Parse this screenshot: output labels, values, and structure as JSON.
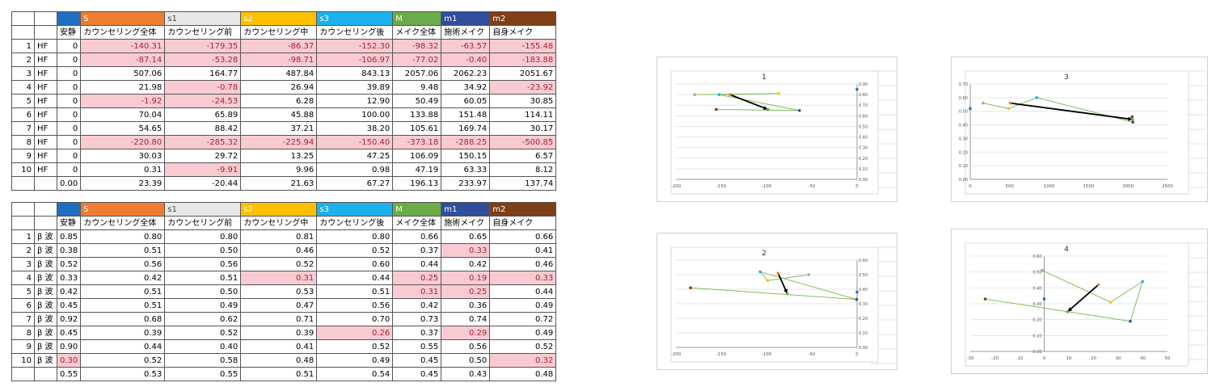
{
  "header_colors": [
    "#1f6fc0",
    "#ee7d31",
    "#e8e8e8",
    "#fec000",
    "#1cb1ee",
    "#6aac47",
    "#2f4e9c",
    "#7f3f17"
  ],
  "header_letters": [
    "",
    "S",
    "s1",
    "s2",
    "s3",
    "M",
    "m1",
    "m2"
  ],
  "col_labels": [
    "安静",
    "カウンセリング全体",
    "カウンセリング前",
    "カウンセリング中",
    "カウンセリング後",
    "メイク全体",
    "施術メイク",
    "自身メイク"
  ],
  "table1": {
    "row_label": "HF",
    "rows": [
      [
        "0",
        "-140.31",
        "-179.35",
        "-86.37",
        "-152.30",
        "-98.32",
        "-63.57",
        "-155.48"
      ],
      [
        "0",
        "-87.14",
        "-53.28",
        "-98.71",
        "-106.97",
        "-77.02",
        "-0.40",
        "-183.88"
      ],
      [
        "0",
        "507.06",
        "164.77",
        "487.84",
        "843.13",
        "2057.06",
        "2062.23",
        "2051.67"
      ],
      [
        "0",
        "21.98",
        "-0.78",
        "26.94",
        "39.89",
        "9.48",
        "34.92",
        "-23.92"
      ],
      [
        "0",
        "-1.92",
        "-24.53",
        "6.28",
        "12.90",
        "50.49",
        "60.05",
        "30.85"
      ],
      [
        "0",
        "70.04",
        "65.89",
        "45.88",
        "100.00",
        "133.88",
        "151.48",
        "114.11"
      ],
      [
        "0",
        "54.65",
        "88.42",
        "37.21",
        "38.20",
        "105.61",
        "169.74",
        "30.17"
      ],
      [
        "0",
        "-220.80",
        "-285.32",
        "-225.94",
        "-150.40",
        "-373.18",
        "-288.25",
        "-500.85"
      ],
      [
        "0",
        "30.03",
        "29.72",
        "13.25",
        "47.25",
        "106.09",
        "150.15",
        "6.57"
      ],
      [
        "0",
        "0.31",
        "-9.91",
        "9.96",
        "0.98",
        "47.19",
        "63.33",
        "8.12"
      ]
    ],
    "highlights": [
      [
        0,
        1
      ],
      [
        0,
        2
      ],
      [
        0,
        3
      ],
      [
        0,
        4
      ],
      [
        0,
        5
      ],
      [
        0,
        6
      ],
      [
        0,
        7
      ],
      [
        1,
        1
      ],
      [
        1,
        2
      ],
      [
        1,
        3
      ],
      [
        1,
        4
      ],
      [
        1,
        5
      ],
      [
        1,
        6
      ],
      [
        1,
        7
      ],
      [
        3,
        2
      ],
      [
        3,
        7
      ],
      [
        4,
        1
      ],
      [
        4,
        2
      ],
      [
        7,
        1
      ],
      [
        7,
        2
      ],
      [
        7,
        3
      ],
      [
        7,
        4
      ],
      [
        7,
        5
      ],
      [
        7,
        6
      ],
      [
        7,
        7
      ],
      [
        9,
        2
      ]
    ],
    "summary": [
      "0.00",
      "23.39",
      "-20.44",
      "21.63",
      "67.27",
      "196.13",
      "233.97",
      "137.74"
    ]
  },
  "table2": {
    "row_label": "β 波",
    "rows": [
      [
        "0.85",
        "0.80",
        "0.80",
        "0.81",
        "0.80",
        "0.66",
        "0.65",
        "0.66"
      ],
      [
        "0.38",
        "0.51",
        "0.50",
        "0.46",
        "0.52",
        "0.37",
        "0.33",
        "0.41"
      ],
      [
        "0.52",
        "0.56",
        "0.56",
        "0.52",
        "0.60",
        "0.44",
        "0.42",
        "0.46"
      ],
      [
        "0.33",
        "0.42",
        "0.51",
        "0.31",
        "0.44",
        "0.25",
        "0.19",
        "0.33"
      ],
      [
        "0.42",
        "0.51",
        "0.50",
        "0.53",
        "0.51",
        "0.31",
        "0.25",
        "0.44"
      ],
      [
        "0.45",
        "0.51",
        "0.49",
        "0.47",
        "0.56",
        "0.42",
        "0.36",
        "0.49"
      ],
      [
        "0.92",
        "0.68",
        "0.62",
        "0.71",
        "0.70",
        "0.73",
        "0.74",
        "0.72"
      ],
      [
        "0.45",
        "0.39",
        "0.52",
        "0.39",
        "0.26",
        "0.37",
        "0.29",
        "0.49"
      ],
      [
        "0.90",
        "0.44",
        "0.40",
        "0.41",
        "0.52",
        "0.55",
        "0.56",
        "0.52"
      ],
      [
        "0.30",
        "0.52",
        "0.58",
        "0.48",
        "0.49",
        "0.45",
        "0.50",
        "0.32"
      ]
    ],
    "highlights": [
      [
        1,
        6
      ],
      [
        3,
        3
      ],
      [
        3,
        5
      ],
      [
        3,
        6
      ],
      [
        3,
        7
      ],
      [
        4,
        5
      ],
      [
        4,
        6
      ],
      [
        7,
        4
      ],
      [
        7,
        6
      ],
      [
        9,
        0
      ],
      [
        9,
        7
      ]
    ],
    "summary": [
      "0.55",
      "0.53",
      "0.55",
      "0.51",
      "0.54",
      "0.45",
      "0.43",
      "0.48"
    ]
  },
  "chart_data": [
    {
      "type": "scatter",
      "title": "1",
      "xlim": [
        -200,
        0
      ],
      "ylim": [
        0,
        0.9
      ],
      "xticks": [
        "-200",
        "-150",
        "-100",
        "-50",
        "0"
      ],
      "yticks": [
        "0.00",
        "0.10",
        "0.20",
        "0.30",
        "0.40",
        "0.50",
        "0.60",
        "0.70",
        "0.80",
        "0.90"
      ],
      "points": [
        {
          "x": 0,
          "y": 0.85,
          "color": "#1f6fc0"
        },
        {
          "x": -140.31,
          "y": 0.8,
          "color": "#ee7d31"
        },
        {
          "x": -179.35,
          "y": 0.8,
          "color": "#a6a6a6"
        },
        {
          "x": -86.37,
          "y": 0.81,
          "color": "#fec000"
        },
        {
          "x": -152.3,
          "y": 0.8,
          "color": "#1cb1ee"
        },
        {
          "x": -98.32,
          "y": 0.66,
          "color": "#6aac47"
        },
        {
          "x": -63.57,
          "y": 0.65,
          "color": "#2f4e9c"
        },
        {
          "x": -155.48,
          "y": 0.66,
          "color": "#7f3f17"
        }
      ],
      "path": [
        [
          -179.35,
          0.8
        ],
        [
          -86.37,
          0.81
        ],
        [
          -152.3,
          0.8
        ],
        [
          -63.57,
          0.65
        ],
        [
          -155.48,
          0.66
        ]
      ],
      "arrow": [
        [
          -140.31,
          0.8
        ],
        [
          -98.32,
          0.66
        ]
      ]
    },
    {
      "type": "scatter",
      "title": "3",
      "xlim": [
        0,
        2500
      ],
      "ylim": [
        0,
        0.7
      ],
      "xticks": [
        "0",
        "500",
        "1000",
        "1500",
        "2000",
        "2500"
      ],
      "yticks": [
        "0.00",
        "0.10",
        "0.20",
        "0.30",
        "0.40",
        "0.50",
        "0.60",
        "0.70"
      ],
      "points": [
        {
          "x": 0,
          "y": 0.52,
          "color": "#1f6fc0"
        },
        {
          "x": 507.06,
          "y": 0.56,
          "color": "#ee7d31"
        },
        {
          "x": 164.77,
          "y": 0.56,
          "color": "#a6a6a6"
        },
        {
          "x": 487.84,
          "y": 0.52,
          "color": "#fec000"
        },
        {
          "x": 843.13,
          "y": 0.6,
          "color": "#1cb1ee"
        },
        {
          "x": 2057.06,
          "y": 0.44,
          "color": "#6aac47"
        },
        {
          "x": 2062.23,
          "y": 0.42,
          "color": "#2f4e9c"
        },
        {
          "x": 2051.67,
          "y": 0.46,
          "color": "#7f3f17"
        }
      ],
      "path": [
        [
          164.77,
          0.56
        ],
        [
          487.84,
          0.52
        ],
        [
          843.13,
          0.6
        ],
        [
          2062.23,
          0.42
        ],
        [
          2051.67,
          0.46
        ]
      ],
      "arrow": [
        [
          507.06,
          0.56
        ],
        [
          2057.06,
          0.44
        ]
      ]
    },
    {
      "type": "scatter",
      "title": "2",
      "xlim": [
        -200,
        0
      ],
      "ylim": [
        0,
        0.6
      ],
      "xticks": [
        "-200",
        "-150",
        "-100",
        "-50",
        "0"
      ],
      "yticks": [
        "0.00",
        "0.10",
        "0.20",
        "0.30",
        "0.40",
        "0.50",
        "0.60"
      ],
      "points": [
        {
          "x": 0,
          "y": 0.38,
          "color": "#1f6fc0"
        },
        {
          "x": -87.14,
          "y": 0.51,
          "color": "#ee7d31"
        },
        {
          "x": -53.28,
          "y": 0.5,
          "color": "#a6a6a6"
        },
        {
          "x": -98.71,
          "y": 0.46,
          "color": "#fec000"
        },
        {
          "x": -106.97,
          "y": 0.52,
          "color": "#1cb1ee"
        },
        {
          "x": -77.02,
          "y": 0.37,
          "color": "#6aac47"
        },
        {
          "x": -0.4,
          "y": 0.33,
          "color": "#2f4e9c"
        },
        {
          "x": -183.88,
          "y": 0.41,
          "color": "#7f3f17"
        }
      ],
      "path": [
        [
          -53.28,
          0.5
        ],
        [
          -98.71,
          0.46
        ],
        [
          -106.97,
          0.52
        ],
        [
          -0.4,
          0.33
        ],
        [
          -183.88,
          0.41
        ]
      ],
      "arrow": [
        [
          -87.14,
          0.51
        ],
        [
          -77.02,
          0.37
        ]
      ]
    },
    {
      "type": "scatter",
      "title": "4",
      "xlim": [
        -30,
        50
      ],
      "ylim": [
        0,
        0.6
      ],
      "xticks": [
        "-30",
        "-20",
        "-10",
        "0",
        "10",
        "20",
        "30",
        "40",
        "50"
      ],
      "yticks": [
        "0.00",
        "0.10",
        "0.20",
        "0.30",
        "0.40",
        "0.50",
        "0.60"
      ],
      "points": [
        {
          "x": 0,
          "y": 0.33,
          "color": "#1f6fc0"
        },
        {
          "x": 21.98,
          "y": 0.42,
          "color": "#ee7d31"
        },
        {
          "x": -0.78,
          "y": 0.51,
          "color": "#a6a6a6"
        },
        {
          "x": 26.94,
          "y": 0.31,
          "color": "#fec000"
        },
        {
          "x": 39.89,
          "y": 0.44,
          "color": "#1cb1ee"
        },
        {
          "x": 9.48,
          "y": 0.25,
          "color": "#6aac47"
        },
        {
          "x": 34.92,
          "y": 0.19,
          "color": "#2f4e9c"
        },
        {
          "x": -23.92,
          "y": 0.33,
          "color": "#7f3f17"
        }
      ],
      "path": [
        [
          -0.78,
          0.51
        ],
        [
          26.94,
          0.31
        ],
        [
          39.89,
          0.44
        ],
        [
          34.92,
          0.19
        ],
        [
          -23.92,
          0.33
        ]
      ],
      "arrow": [
        [
          21.98,
          0.42
        ],
        [
          9.48,
          0.25
        ]
      ]
    }
  ]
}
